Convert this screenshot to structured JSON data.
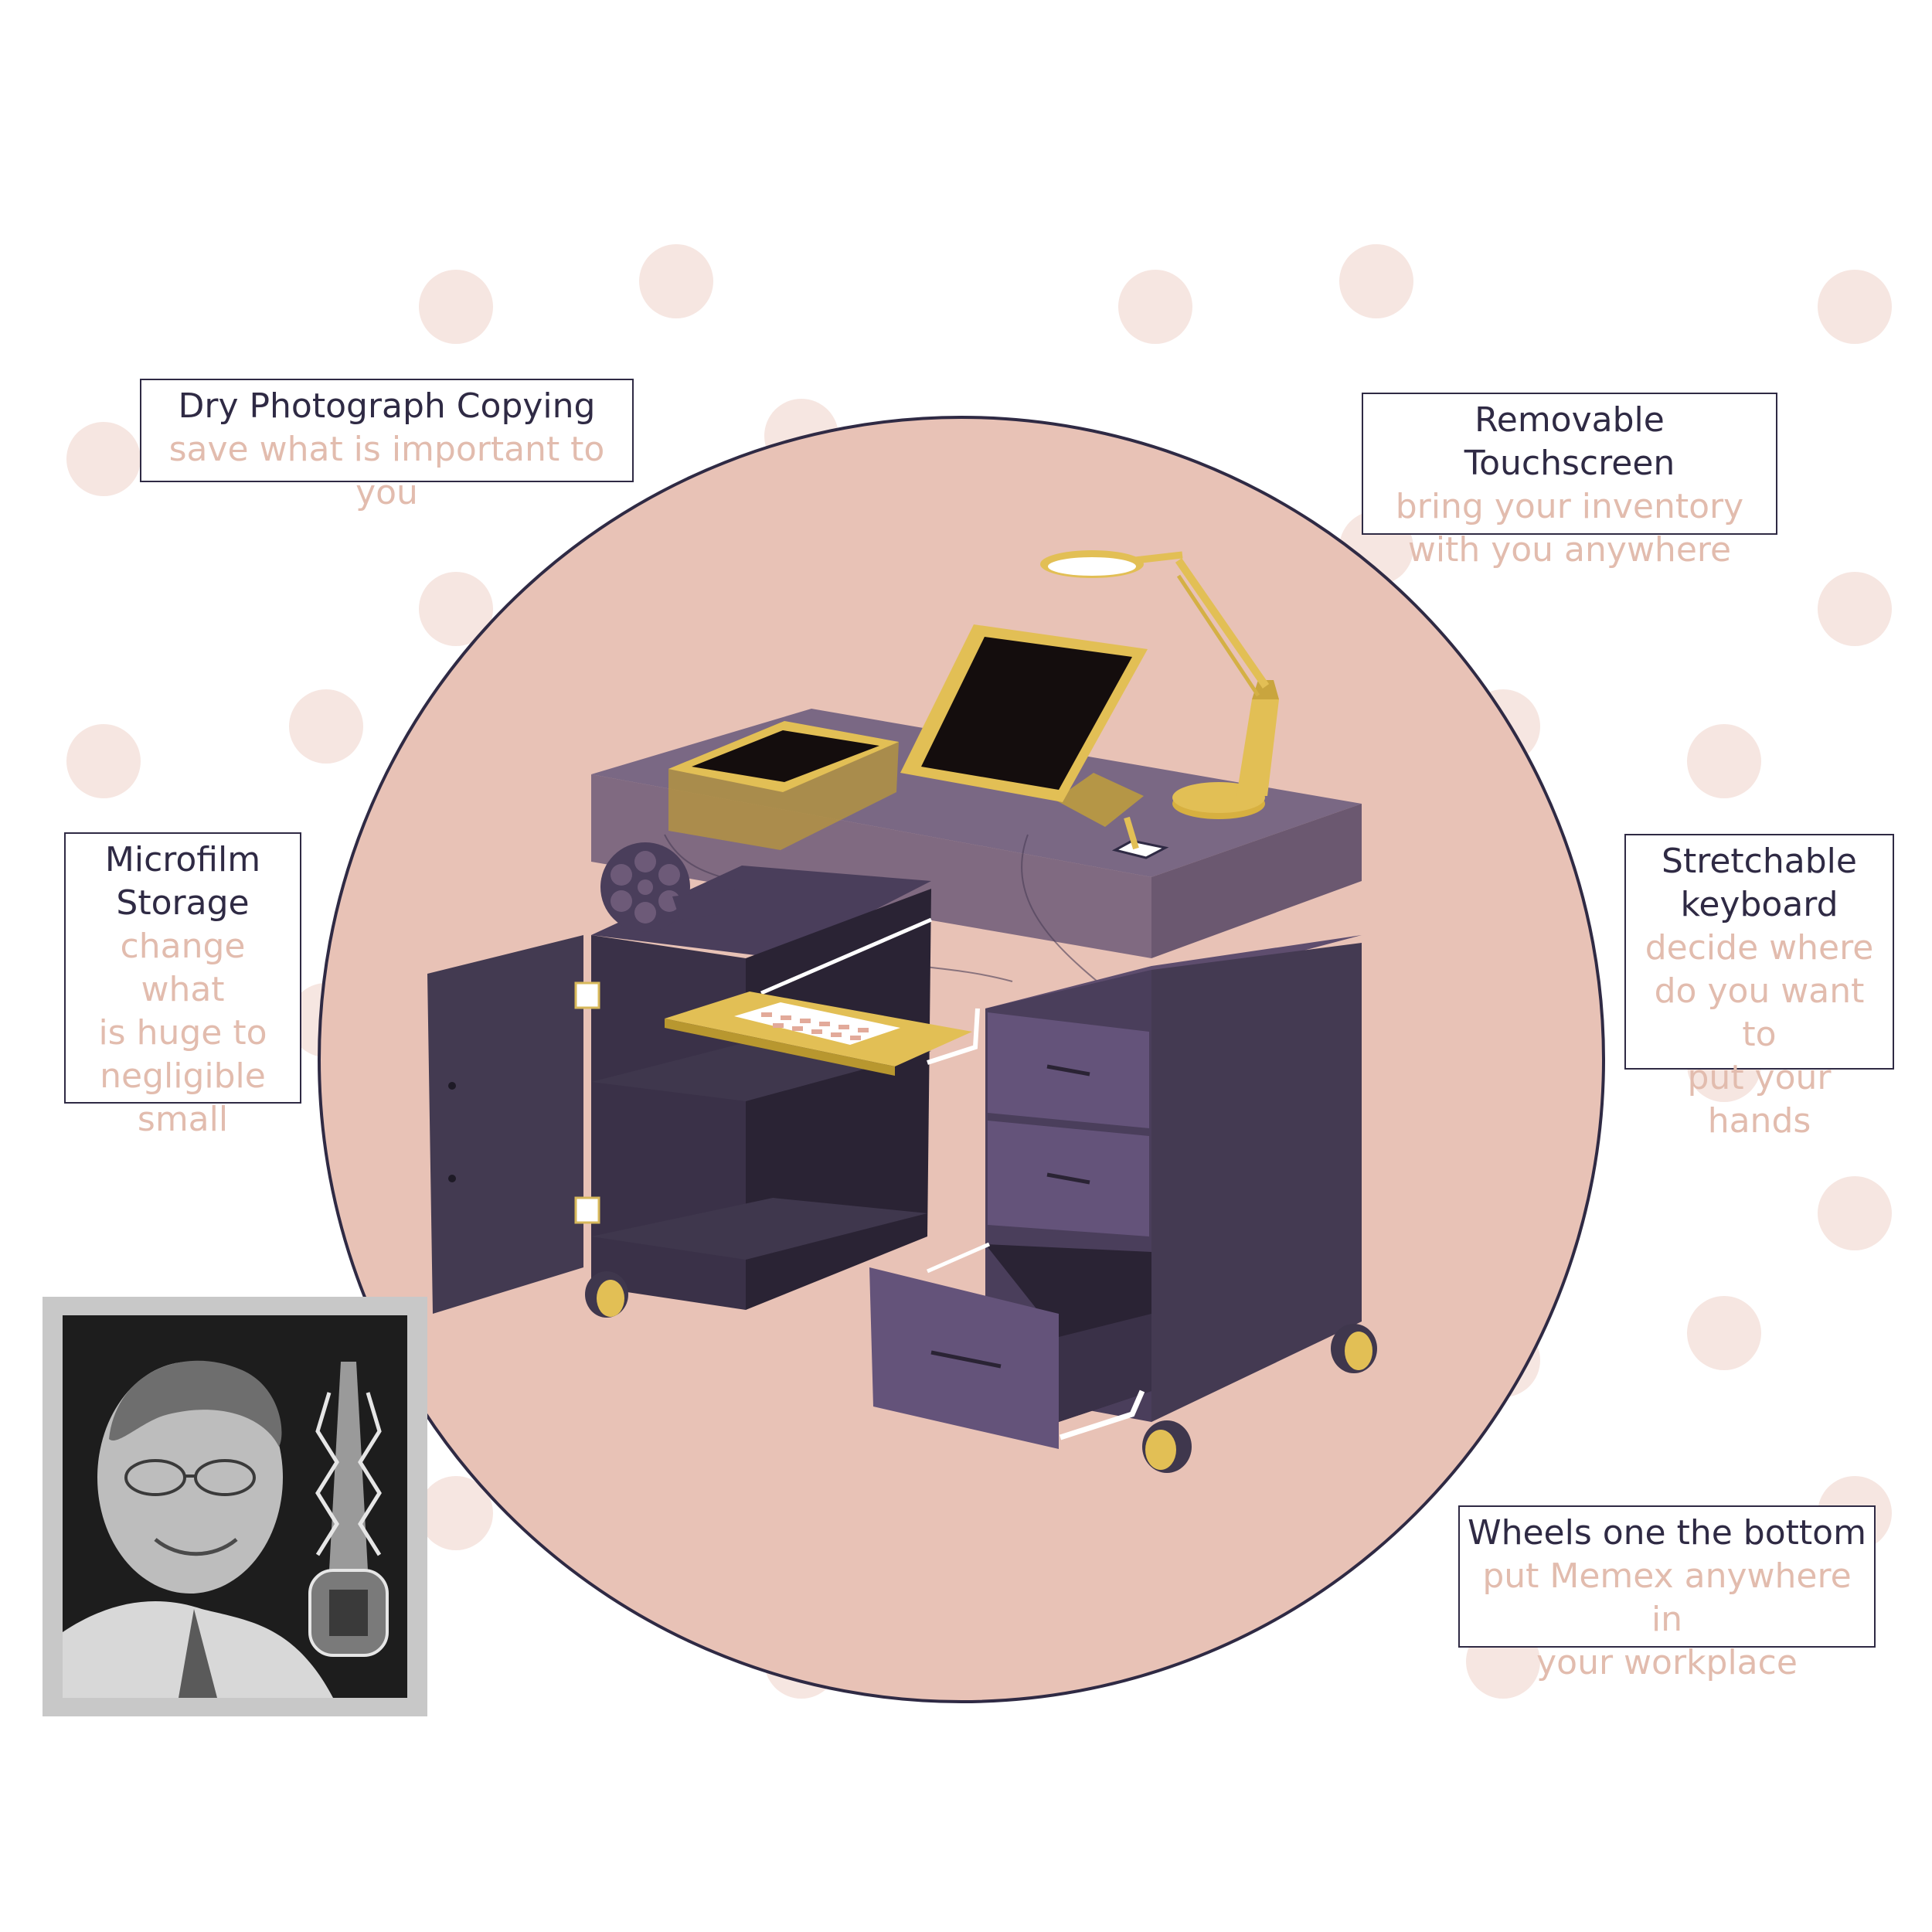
{
  "colors": {
    "circle_fill": "#e8c2b6",
    "circle_stroke": "#2f2a44",
    "dot": "#f6e6e1",
    "desk_dark": "#3f374d",
    "desk_mid": "#5a4d6b",
    "desk_light": "#6d5a78",
    "gold": "#e2bf55",
    "screen": "#140d0d",
    "title_text": "#2f2a44",
    "sub_text": "#e2bcae"
  },
  "callouts": {
    "dry": {
      "title": "Dry Photograph Copying",
      "lines": [
        "save what is important to you"
      ]
    },
    "touch": {
      "title": "Removable Touchscreen",
      "lines": [
        "bring your inventory",
        "with you anywhere"
      ]
    },
    "micro": {
      "title_lines": [
        "Microfilm",
        "Storage"
      ],
      "lines": [
        "change what",
        "is huge to",
        "negligible",
        "small"
      ]
    },
    "keyboard": {
      "title_lines": [
        "Stretchable",
        "keyboard"
      ],
      "lines": [
        "decide where",
        "do you want to",
        "put your hands"
      ]
    },
    "wheels": {
      "title": "Wheels one the bottom",
      "lines": [
        "put Memex anywhere in",
        "your workplace"
      ]
    }
  },
  "icons": {
    "lamp": "desk-lamp-icon",
    "tablet": "touchscreen-tablet-icon",
    "reel": "film-reel-icon",
    "keyboard": "keyboard-tray-icon",
    "wheel": "caster-wheel-icon",
    "portrait": "inventor-portrait-image"
  }
}
